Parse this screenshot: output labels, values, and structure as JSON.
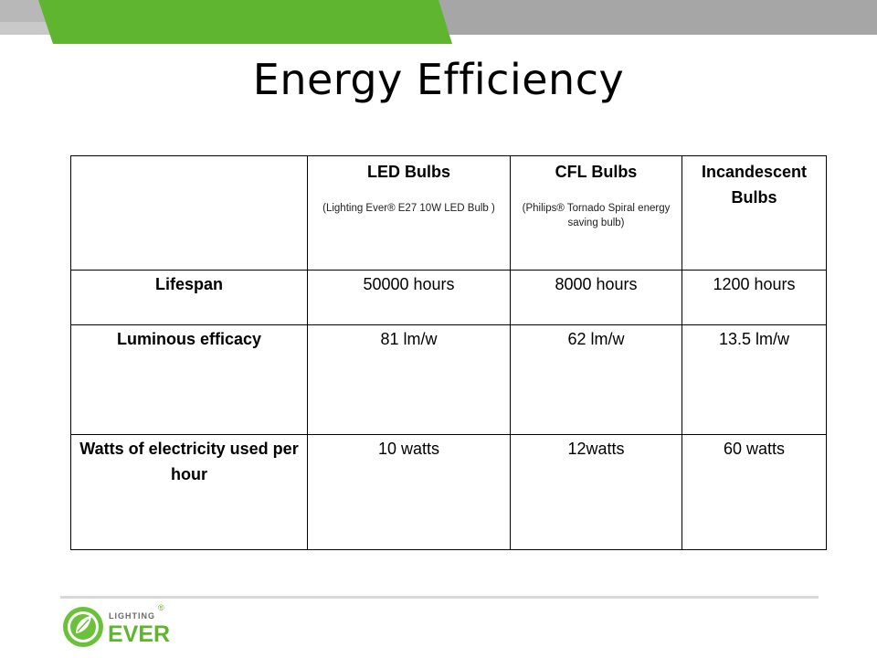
{
  "slide": {
    "title": "Energy Efficiency",
    "colors": {
      "accent_green": "#5fb52f",
      "band_gray": "#a6a6a6",
      "band_light": "#d0d0d0"
    }
  },
  "table": {
    "columns": [
      {
        "name": "",
        "note": ""
      },
      {
        "name": "LED Bulbs",
        "note": "(Lighting Ever® E27 10W LED Bulb )"
      },
      {
        "name": "CFL Bulbs",
        "note": "(Philips® Tornado Spiral energy saving bulb)"
      },
      {
        "name": "Incandescent Bulbs",
        "note": ""
      }
    ],
    "rows": [
      {
        "label": "Lifespan",
        "values": [
          "50000 hours",
          "8000 hours",
          "1200 hours"
        ]
      },
      {
        "label": "Luminous efficacy",
        "values": [
          "81 lm/w",
          "62 lm/w",
          "13.5 lm/w"
        ]
      },
      {
        "label": "Watts of electricity used per hour",
        "values": [
          "10 watts",
          "12watts",
          "60 watts"
        ]
      }
    ]
  },
  "logo": {
    "top_text": "LIGHTING",
    "main_text": "EVER",
    "mark": "®"
  }
}
